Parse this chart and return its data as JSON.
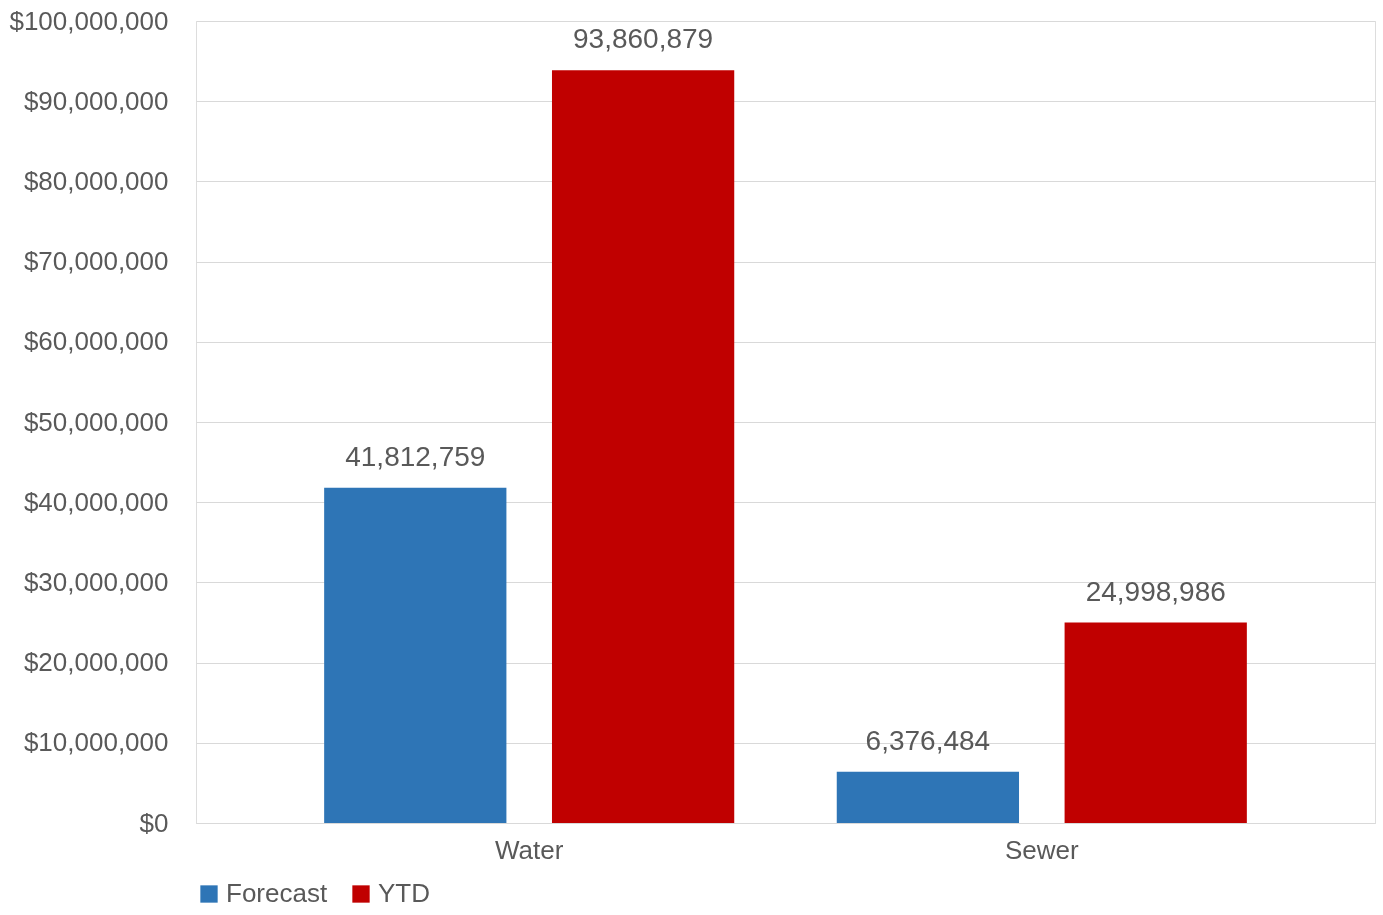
{
  "chart_data": {
    "type": "bar",
    "categories": [
      "Water",
      "Sewer"
    ],
    "series": [
      {
        "name": "Forecast",
        "color": "#2e75b6",
        "values": [
          41812759,
          6376484
        ],
        "value_labels": [
          "41,812,759",
          "6,376,484"
        ]
      },
      {
        "name": "YTD",
        "color": "#c00000",
        "values": [
          93860879,
          24998986
        ],
        "value_labels": [
          "93,860,879",
          "24,998,986"
        ]
      }
    ],
    "ylim": [
      0,
      100000000
    ],
    "yticks": [
      {
        "value": 0,
        "label": "$0"
      },
      {
        "value": 10000000,
        "label": "$10,000,000"
      },
      {
        "value": 20000000,
        "label": "$20,000,000"
      },
      {
        "value": 30000000,
        "label": "$30,000,000"
      },
      {
        "value": 40000000,
        "label": "$40,000,000"
      },
      {
        "value": 50000000,
        "label": "$50,000,000"
      },
      {
        "value": 60000000,
        "label": "$60,000,000"
      },
      {
        "value": 70000000,
        "label": "$70,000,000"
      },
      {
        "value": 80000000,
        "label": "$80,000,000"
      },
      {
        "value": 90000000,
        "label": "$90,000,000"
      },
      {
        "value": 100000000,
        "label": "$100,000,000"
      }
    ],
    "grid": "y",
    "legend": "bottom"
  }
}
